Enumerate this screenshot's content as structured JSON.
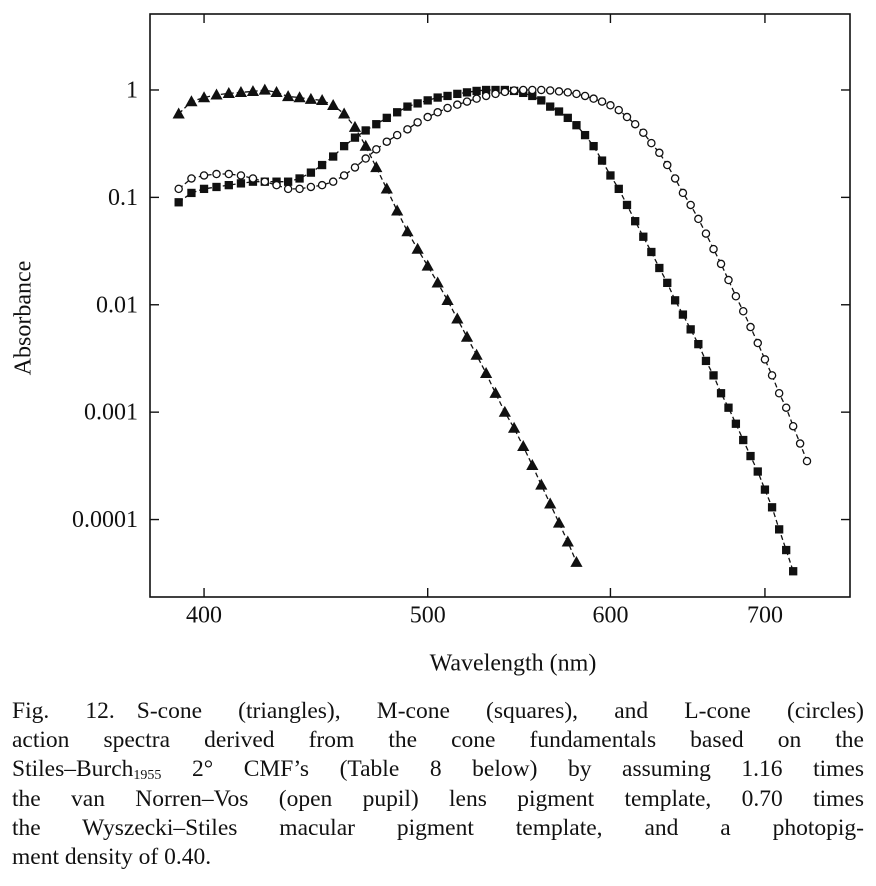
{
  "chart_data": {
    "type": "scatter",
    "xscale": "log",
    "yscale": "log",
    "xlabel": "Wavelength (nm)",
    "ylabel": "Absorbance",
    "xlim": [
      379,
      762
    ],
    "ylim": [
      1.9e-05,
      5.1
    ],
    "xticks": [
      400,
      500,
      600,
      700
    ],
    "yticks": [
      1,
      0.1,
      0.01,
      0.001,
      0.0001
    ],
    "series": [
      {
        "marker": "triangle",
        "filled": true,
        "color": "#111111",
        "line": "dashed",
        "x": [
          390,
          395,
          400,
          405,
          410,
          415,
          420,
          425,
          430,
          435,
          440,
          445,
          450,
          455,
          460,
          465,
          470,
          475,
          480,
          485,
          490,
          495,
          500,
          505,
          510,
          515,
          520,
          525,
          530,
          535,
          540,
          545,
          550,
          555,
          560,
          565,
          570,
          575,
          580
        ],
        "values": [
          0.6,
          0.78,
          0.85,
          0.9,
          0.93,
          0.95,
          0.97,
          1.0,
          0.95,
          0.87,
          0.85,
          0.82,
          0.8,
          0.72,
          0.6,
          0.45,
          0.3,
          0.19,
          0.12,
          0.075,
          0.048,
          0.033,
          0.023,
          0.016,
          0.011,
          0.0074,
          0.005,
          0.0034,
          0.0023,
          0.0015,
          0.001,
          0.00071,
          0.00048,
          0.00032,
          0.00021,
          0.00014,
          9.3e-05,
          6.2e-05,
          4e-05
        ]
      },
      {
        "marker": "square",
        "filled": true,
        "color": "#111111",
        "line": "dashed",
        "x": [
          390,
          395,
          400,
          405,
          410,
          415,
          420,
          425,
          430,
          435,
          440,
          445,
          450,
          455,
          460,
          465,
          470,
          475,
          480,
          485,
          490,
          495,
          500,
          505,
          510,
          515,
          520,
          525,
          530,
          535,
          540,
          545,
          550,
          555,
          560,
          565,
          570,
          575,
          580,
          585,
          590,
          595,
          600,
          605,
          610,
          615,
          620,
          625,
          630,
          635,
          640,
          645,
          650,
          655,
          660,
          665,
          670,
          675,
          680,
          685,
          690,
          695,
          700,
          705,
          710,
          715,
          720
        ],
        "values": [
          0.09,
          0.11,
          0.12,
          0.125,
          0.13,
          0.135,
          0.14,
          0.14,
          0.14,
          0.14,
          0.15,
          0.17,
          0.2,
          0.24,
          0.3,
          0.36,
          0.42,
          0.48,
          0.55,
          0.62,
          0.7,
          0.75,
          0.8,
          0.85,
          0.88,
          0.92,
          0.95,
          0.98,
          1.0,
          1.0,
          1.0,
          0.98,
          0.94,
          0.88,
          0.8,
          0.7,
          0.63,
          0.55,
          0.47,
          0.38,
          0.3,
          0.22,
          0.16,
          0.12,
          0.085,
          0.06,
          0.043,
          0.031,
          0.022,
          0.016,
          0.011,
          0.0081,
          0.0059,
          0.0043,
          0.003,
          0.0022,
          0.0015,
          0.0011,
          0.00078,
          0.00055,
          0.00039,
          0.00028,
          0.00019,
          0.00013,
          8.1e-05,
          5.2e-05,
          3.3e-05
        ]
      },
      {
        "marker": "circle",
        "filled": false,
        "color": "#111111",
        "line": "dashed",
        "x": [
          390,
          395,
          400,
          405,
          410,
          415,
          420,
          425,
          430,
          435,
          440,
          445,
          450,
          455,
          460,
          465,
          470,
          475,
          480,
          485,
          490,
          495,
          500,
          505,
          510,
          515,
          520,
          525,
          530,
          535,
          540,
          545,
          550,
          555,
          560,
          565,
          570,
          575,
          580,
          585,
          590,
          595,
          600,
          605,
          610,
          615,
          620,
          625,
          630,
          635,
          640,
          645,
          650,
          655,
          660,
          665,
          670,
          675,
          680,
          685,
          690,
          695,
          700,
          705,
          710,
          715,
          720,
          725,
          730
        ],
        "values": [
          0.12,
          0.15,
          0.16,
          0.165,
          0.165,
          0.16,
          0.15,
          0.14,
          0.13,
          0.12,
          0.12,
          0.125,
          0.13,
          0.14,
          0.16,
          0.19,
          0.23,
          0.28,
          0.33,
          0.38,
          0.43,
          0.5,
          0.56,
          0.62,
          0.68,
          0.73,
          0.78,
          0.83,
          0.88,
          0.92,
          0.96,
          0.99,
          1.0,
          1.0,
          1.0,
          0.99,
          0.97,
          0.95,
          0.92,
          0.88,
          0.83,
          0.78,
          0.72,
          0.65,
          0.56,
          0.48,
          0.4,
          0.32,
          0.26,
          0.2,
          0.15,
          0.11,
          0.085,
          0.063,
          0.046,
          0.033,
          0.024,
          0.017,
          0.012,
          0.0087,
          0.0062,
          0.0044,
          0.0031,
          0.0022,
          0.0015,
          0.0011,
          0.00074,
          0.00051,
          0.00035
        ]
      }
    ]
  },
  "caption": {
    "label": "Fig. 12.",
    "lines": [
      [
        "S-cone (triangles), M-cone (squares), and L-cone (circles)"
      ],
      [
        "action spectra derived from the cone fundamentals based on the"
      ],
      [
        "Stiles–Burch",
        "1955",
        " 2° CMF’s (Table 8 below) by assuming 1.16 times"
      ],
      [
        "the van Norren–Vos (open pupil) lens pigment template, 0.70 times"
      ],
      [
        "the Wyszecki–Stiles macular pigment template, and a photopig-"
      ],
      [
        "ment density of 0.40."
      ]
    ]
  }
}
